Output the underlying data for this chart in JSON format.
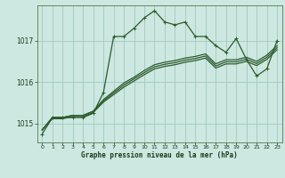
{
  "xlabel": "Graphe pression niveau de la mer (hPa)",
  "background_color": "#cde8e0",
  "plot_bg_color": "#cde8e0",
  "grid_color": "#a0c8c0",
  "line_color": "#2d5a2d",
  "yticks": [
    1015,
    1016,
    1017
  ],
  "ylim": [
    1014.55,
    1017.85
  ],
  "xlim": [
    -0.5,
    23.5
  ],
  "xticks": [
    0,
    1,
    2,
    3,
    4,
    5,
    6,
    7,
    8,
    9,
    10,
    11,
    12,
    13,
    14,
    15,
    16,
    17,
    18,
    19,
    20,
    21,
    22,
    23
  ],
  "series": [
    [
      1014.75,
      1015.15,
      1015.15,
      1015.15,
      1015.15,
      1015.25,
      1015.75,
      1017.1,
      1017.1,
      1017.3,
      1017.55,
      1017.72,
      1017.45,
      1017.38,
      1017.45,
      1017.1,
      1017.1,
      1016.88,
      1016.72,
      1017.05,
      1016.55,
      1016.15,
      1016.32,
      1017.0
    ],
    [
      1014.85,
      1015.15,
      1015.15,
      1015.2,
      1015.2,
      1015.3,
      1015.58,
      1015.78,
      1015.98,
      1016.12,
      1016.28,
      1016.42,
      1016.48,
      1016.52,
      1016.58,
      1016.62,
      1016.68,
      1016.44,
      1016.54,
      1016.54,
      1016.6,
      1016.5,
      1016.65,
      1016.88
    ],
    [
      1014.85,
      1015.15,
      1015.15,
      1015.2,
      1015.2,
      1015.3,
      1015.55,
      1015.74,
      1015.93,
      1016.08,
      1016.23,
      1016.37,
      1016.43,
      1016.47,
      1016.53,
      1016.57,
      1016.63,
      1016.39,
      1016.49,
      1016.49,
      1016.55,
      1016.45,
      1016.6,
      1016.83
    ],
    [
      1014.85,
      1015.12,
      1015.12,
      1015.17,
      1015.17,
      1015.27,
      1015.52,
      1015.7,
      1015.88,
      1016.03,
      1016.18,
      1016.32,
      1016.38,
      1016.42,
      1016.48,
      1016.52,
      1016.58,
      1016.34,
      1016.44,
      1016.44,
      1016.5,
      1016.4,
      1016.55,
      1016.78
    ]
  ],
  "marker_series": 0,
  "marker": "+",
  "marker_size": 3,
  "linewidth": 0.9
}
